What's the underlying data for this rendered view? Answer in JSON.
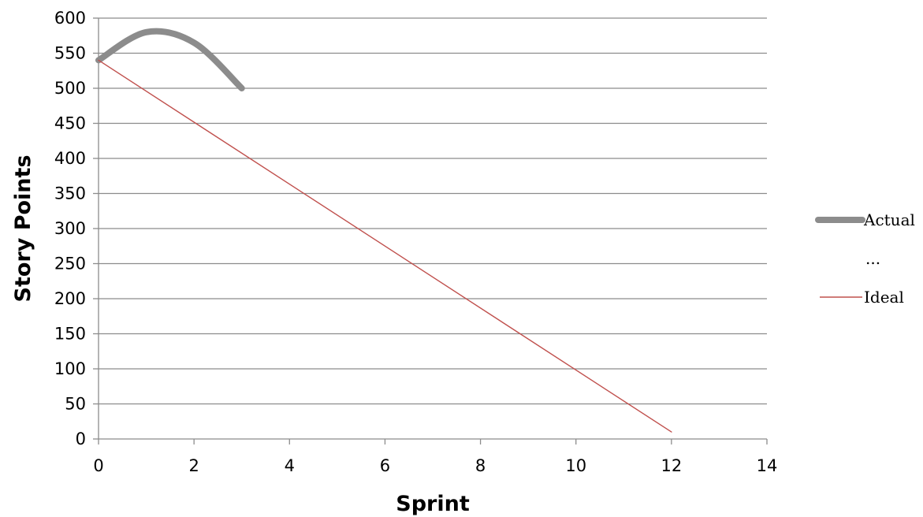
{
  "chart_data": {
    "type": "line",
    "title": "",
    "xlabel": "Sprint",
    "ylabel": "Story Points",
    "xlim": [
      0,
      14
    ],
    "ylim": [
      0,
      600
    ],
    "x_ticks": [
      0,
      2,
      4,
      6,
      8,
      10,
      12,
      14
    ],
    "y_ticks": [
      0,
      50,
      100,
      150,
      200,
      250,
      300,
      350,
      400,
      450,
      500,
      550,
      600
    ],
    "grid": "horizontal",
    "legend_position": "right",
    "series": [
      {
        "name": "Actual",
        "color": "#8c8c8c",
        "style": "thick-smoothed",
        "x": [
          0,
          1,
          2,
          3
        ],
        "y": [
          540,
          580,
          565,
          500
        ]
      },
      {
        "name": "Ideal",
        "color": "#c0504d",
        "style": "thin",
        "x": [
          0,
          12
        ],
        "y": [
          540,
          10
        ]
      }
    ],
    "legend_entries": [
      "Actual",
      "...",
      "Ideal"
    ]
  }
}
